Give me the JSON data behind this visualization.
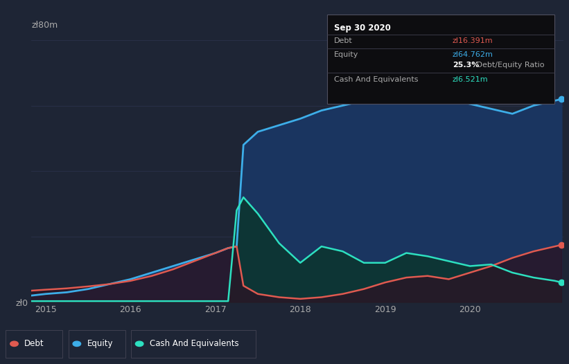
{
  "background_color": "#1e2535",
  "plot_bg_color": "#1e2535",
  "grid_color": "#2d3550",
  "debt_color": "#e05a50",
  "equity_color": "#3daee9",
  "cash_color": "#2de0c0",
  "equity_fill_color": "#1a3560",
  "cash_fill_color": "#0d3535",
  "debt_fill_color": "#2a1525",
  "xlim": [
    2014.83,
    2021.1
  ],
  "ylim": [
    0,
    80
  ],
  "xticks": [
    2015,
    2016,
    2017,
    2018,
    2019,
    2020
  ],
  "tooltip_title": "Sep 30 2020",
  "tooltip_debt_label": "Debt",
  "tooltip_debt_value": "zl16.391m",
  "tooltip_equity_label": "Equity",
  "tooltip_equity_value": "zl64.762m",
  "tooltip_ratio_bold": "25.3%",
  "tooltip_ratio_normal": " Debt/Equity Ratio",
  "tooltip_cash_label": "Cash And Equivalents",
  "tooltip_cash_value": "zl6.521m",
  "years": [
    2014.83,
    2015.0,
    2015.25,
    2015.5,
    2015.75,
    2016.0,
    2016.25,
    2016.5,
    2016.75,
    2017.0,
    2017.15,
    2017.25,
    2017.33,
    2017.5,
    2017.75,
    2018.0,
    2018.25,
    2018.5,
    2018.75,
    2019.0,
    2019.25,
    2019.5,
    2019.75,
    2020.0,
    2020.25,
    2020.5,
    2020.75,
    2021.0,
    2021.08
  ],
  "equity": [
    2.0,
    2.5,
    3.0,
    4.0,
    5.5,
    7.0,
    9.0,
    11.0,
    13.0,
    15.0,
    16.5,
    17.0,
    48.0,
    52.0,
    54.0,
    56.0,
    58.5,
    60.0,
    61.5,
    63.0,
    65.5,
    63.5,
    62.0,
    60.5,
    59.0,
    57.5,
    60.0,
    61.5,
    62.0
  ],
  "debt": [
    3.5,
    3.8,
    4.2,
    4.8,
    5.5,
    6.5,
    8.0,
    10.0,
    12.5,
    15.0,
    16.5,
    17.0,
    5.0,
    2.5,
    1.5,
    1.0,
    1.5,
    2.5,
    4.0,
    6.0,
    7.5,
    8.0,
    7.0,
    9.0,
    11.0,
    13.5,
    15.5,
    17.0,
    17.5
  ],
  "cash": [
    0.3,
    0.3,
    0.3,
    0.3,
    0.3,
    0.3,
    0.3,
    0.3,
    0.3,
    0.3,
    0.3,
    28.0,
    32.0,
    27.0,
    18.0,
    12.0,
    17.0,
    15.5,
    12.0,
    12.0,
    15.0,
    14.0,
    12.5,
    11.0,
    11.5,
    9.0,
    7.5,
    6.5,
    6.0
  ]
}
